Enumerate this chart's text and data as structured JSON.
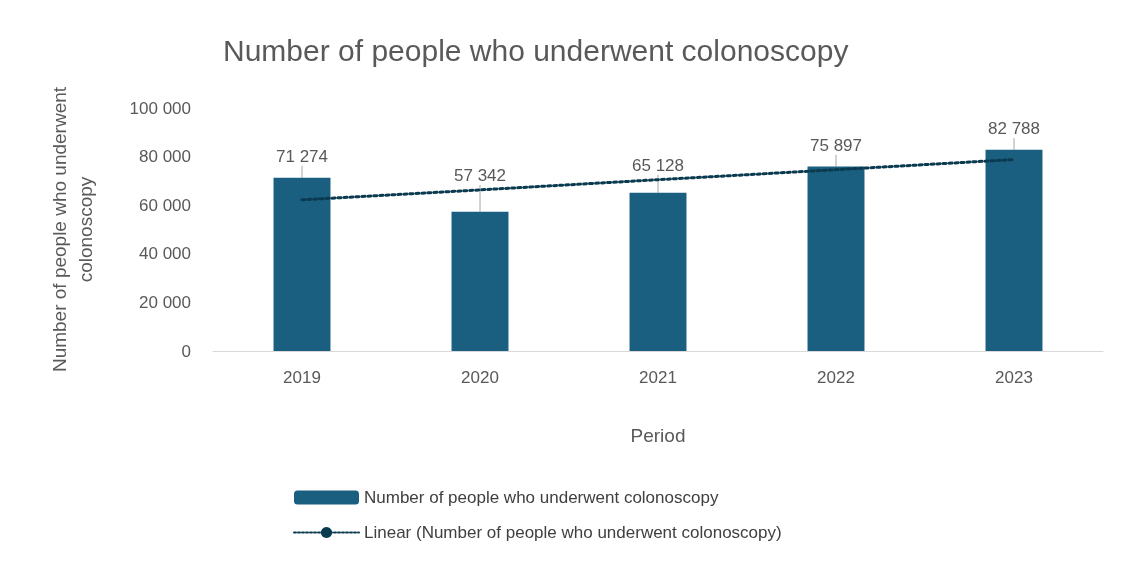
{
  "chart_data": {
    "type": "bar",
    "title": "Number of people who underwent colonoscopy",
    "xlabel": "Period",
    "ylabel": "Number of people who underwent\ncolonoscopy",
    "categories": [
      "2019",
      "2020",
      "2021",
      "2022",
      "2023"
    ],
    "series": [
      {
        "name": "Number of people who underwent colonoscopy",
        "color": "#1b5f80",
        "values": [
          71274,
          57342,
          65128,
          75897,
          82788
        ],
        "value_labels": [
          "71 274",
          "57 342",
          "65 128",
          "75 897",
          "82 788"
        ]
      },
      {
        "name": "Linear (Number of people who underwent colonoscopy)",
        "type": "line",
        "color": "#0a3a4f",
        "values": [
          62200,
          66300,
          70500,
          74600,
          78800
        ],
        "line_style": "dotted",
        "marker": "none"
      }
    ],
    "ylim": [
      0,
      100000
    ],
    "yticks": [
      {
        "value": 0,
        "label": "0"
      },
      {
        "value": 20000,
        "label": "20 000"
      },
      {
        "value": 40000,
        "label": "40 000"
      },
      {
        "value": 60000,
        "label": "60 000"
      },
      {
        "value": 80000,
        "label": "80 000"
      },
      {
        "value": 100000,
        "label": "100 000"
      }
    ],
    "grid": false,
    "legend": "bottom"
  }
}
